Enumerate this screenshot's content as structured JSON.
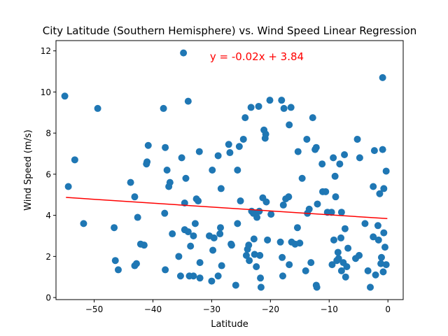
{
  "chart_data": {
    "type": "scatter",
    "title": "City Latitude (Southern Hemisphere) vs. Wind Speed Linear Regression",
    "xlabel": "Latitude",
    "ylabel": "Wind Speed (m/s)",
    "xlim": [
      -56.5,
      2.6
    ],
    "ylim": [
      -0.1,
      12.5
    ],
    "xticks": [
      -50,
      -40,
      -30,
      -20,
      -10,
      0
    ],
    "yticks": [
      0,
      2,
      4,
      6,
      8,
      10,
      12
    ],
    "xtick_labels": [
      "−50",
      "−40",
      "−30",
      "−20",
      "−10",
      "0"
    ],
    "ytick_labels": [
      "0",
      "2",
      "4",
      "6",
      "8",
      "10",
      "12"
    ],
    "grid": false,
    "legend": "none",
    "regression": {
      "equation": "y = -0.02x + 3.84",
      "x": [
        -54.8,
        -0.1
      ],
      "y": [
        4.87,
        3.84
      ],
      "color": "#ff0000"
    },
    "marker_color": "#1f77b4",
    "points": [
      [
        -55.0,
        9.8
      ],
      [
        -54.4,
        5.4
      ],
      [
        -53.3,
        6.7
      ],
      [
        -51.8,
        3.6
      ],
      [
        -49.4,
        9.2
      ],
      [
        -46.6,
        3.4
      ],
      [
        -46.4,
        1.8
      ],
      [
        -45.9,
        1.35
      ],
      [
        -43.8,
        5.6
      ],
      [
        -43.1,
        4.9
      ],
      [
        -43.1,
        1.55
      ],
      [
        -42.8,
        1.65
      ],
      [
        -42.6,
        3.9
      ],
      [
        -42.1,
        2.6
      ],
      [
        -41.5,
        2.55
      ],
      [
        -41.1,
        6.5
      ],
      [
        -41.0,
        6.6
      ],
      [
        -40.8,
        7.4
      ],
      [
        -38.2,
        9.2
      ],
      [
        -38.0,
        4.1
      ],
      [
        -37.9,
        7.3
      ],
      [
        -37.9,
        1.35
      ],
      [
        -37.6,
        6.2
      ],
      [
        -37.3,
        5.4
      ],
      [
        -37.1,
        5.6
      ],
      [
        -36.7,
        3.1
      ],
      [
        -35.6,
        2.0
      ],
      [
        -35.3,
        1.05
      ],
      [
        -35.1,
        6.8
      ],
      [
        -34.8,
        11.9
      ],
      [
        -34.6,
        4.6
      ],
      [
        -34.6,
        3.3
      ],
      [
        -34.4,
        5.8
      ],
      [
        -34.0,
        9.55
      ],
      [
        -34.0,
        3.2
      ],
      [
        -33.8,
        1.05
      ],
      [
        -33.6,
        2.5
      ],
      [
        -33.1,
        3.0
      ],
      [
        -33.1,
        1.05
      ],
      [
        -32.8,
        3.6
      ],
      [
        -32.6,
        4.8
      ],
      [
        -32.3,
        4.7
      ],
      [
        -32.1,
        7.1
      ],
      [
        -32.0,
        0.95
      ],
      [
        -32.0,
        1.7
      ],
      [
        -30.4,
        3.0
      ],
      [
        -30.0,
        0.8
      ],
      [
        -29.9,
        6.2
      ],
      [
        -29.8,
        2.3
      ],
      [
        -29.6,
        2.9
      ],
      [
        -28.9,
        6.9
      ],
      [
        -28.9,
        1.05
      ],
      [
        -28.6,
        3.1
      ],
      [
        -28.5,
        3.4
      ],
      [
        -28.4,
        5.3
      ],
      [
        -28.3,
        1.55
      ],
      [
        -27.1,
        7.45
      ],
      [
        -26.9,
        7.05
      ],
      [
        -26.7,
        2.6
      ],
      [
        -26.6,
        2.55
      ],
      [
        -25.9,
        0.6
      ],
      [
        -25.6,
        3.6
      ],
      [
        -25.6,
        6.2
      ],
      [
        -25.3,
        7.35
      ],
      [
        -25.1,
        4.7
      ],
      [
        -24.6,
        7.7
      ],
      [
        -24.3,
        8.75
      ],
      [
        -24.1,
        2.05
      ],
      [
        -23.9,
        2.35
      ],
      [
        -23.7,
        2.55
      ],
      [
        -23.6,
        1.8
      ],
      [
        -23.3,
        9.25
      ],
      [
        -23.2,
        4.2
      ],
      [
        -22.9,
        4.1
      ],
      [
        -22.8,
        2.85
      ],
      [
        -22.7,
        2.1
      ],
      [
        -22.7,
        4.1
      ],
      [
        -22.4,
        1.5
      ],
      [
        -22.3,
        3.9
      ],
      [
        -22.0,
        9.3
      ],
      [
        -21.9,
        4.2
      ],
      [
        -21.8,
        2.05
      ],
      [
        -21.7,
        0.95
      ],
      [
        -21.6,
        0.5
      ],
      [
        -21.3,
        4.85
      ],
      [
        -21.1,
        8.15
      ],
      [
        -20.9,
        7.75
      ],
      [
        -20.8,
        7.95
      ],
      [
        -20.7,
        4.65
      ],
      [
        -20.5,
        2.8
      ],
      [
        -20.1,
        9.6
      ],
      [
        -19.9,
        4.05
      ],
      [
        -18.3,
        2.7
      ],
      [
        -18.1,
        9.6
      ],
      [
        -18.0,
        1.95
      ],
      [
        -17.9,
        1.05
      ],
      [
        -17.8,
        4.5
      ],
      [
        -17.7,
        9.2
      ],
      [
        -17.4,
        4.8
      ],
      [
        -16.9,
        4.9
      ],
      [
        -16.8,
        8.4
      ],
      [
        -16.8,
        1.6
      ],
      [
        -16.5,
        9.25
      ],
      [
        -16.4,
        2.7
      ],
      [
        -15.8,
        2.6
      ],
      [
        -15.4,
        3.4
      ],
      [
        -15.3,
        7.1
      ],
      [
        -15.0,
        2.65
      ],
      [
        -14.6,
        5.8
      ],
      [
        -14.0,
        1.3
      ],
      [
        -13.8,
        7.7
      ],
      [
        -13.7,
        4.1
      ],
      [
        -13.4,
        4.3
      ],
      [
        -13.1,
        1.7
      ],
      [
        -12.8,
        8.75
      ],
      [
        -12.4,
        7.2
      ],
      [
        -12.2,
        7.3
      ],
      [
        -12.2,
        0.6
      ],
      [
        -12.1,
        0.5
      ],
      [
        -12.0,
        4.55
      ],
      [
        -11.2,
        6.5
      ],
      [
        -11.1,
        5.15
      ],
      [
        -10.6,
        5.15
      ],
      [
        -10.3,
        4.15
      ],
      [
        -9.6,
        4.15
      ],
      [
        -9.5,
        1.6
      ],
      [
        -9.3,
        6.8
      ],
      [
        -9.2,
        2.8
      ],
      [
        -9.0,
        5.9
      ],
      [
        -8.9,
        4.9
      ],
      [
        -8.7,
        1.8
      ],
      [
        -8.5,
        2.2
      ],
      [
        -8.4,
        1.9
      ],
      [
        -8.2,
        6.5
      ],
      [
        -8.0,
        2.9
      ],
      [
        -7.9,
        1.3
      ],
      [
        -7.9,
        4.15
      ],
      [
        -7.6,
        1.7
      ],
      [
        -7.4,
        6.95
      ],
      [
        -7.3,
        3.35
      ],
      [
        -7.2,
        1.0
      ],
      [
        -7.0,
        1.5
      ],
      [
        -6.8,
        2.4
      ],
      [
        -5.5,
        1.9
      ],
      [
        -5.2,
        7.7
      ],
      [
        -4.9,
        2.05
      ],
      [
        -4.8,
        6.8
      ],
      [
        -3.9,
        3.6
      ],
      [
        -3.4,
        1.3
      ],
      [
        -3.0,
        0.5
      ],
      [
        -2.5,
        5.4
      ],
      [
        -2.5,
        2.95
      ],
      [
        -2.3,
        7.15
      ],
      [
        -2.1,
        1.1
      ],
      [
        -1.7,
        3.5
      ],
      [
        -1.6,
        2.8
      ],
      [
        -1.4,
        5.05
      ],
      [
        -1.2,
        1.65
      ],
      [
        -1.1,
        1.95
      ],
      [
        -0.9,
        10.7
      ],
      [
        -0.9,
        7.2
      ],
      [
        -0.8,
        1.25
      ],
      [
        -0.7,
        3.15
      ],
      [
        -0.7,
        5.3
      ],
      [
        -0.5,
        2.45
      ],
      [
        -0.3,
        6.15
      ],
      [
        -0.3,
        1.6
      ]
    ]
  }
}
